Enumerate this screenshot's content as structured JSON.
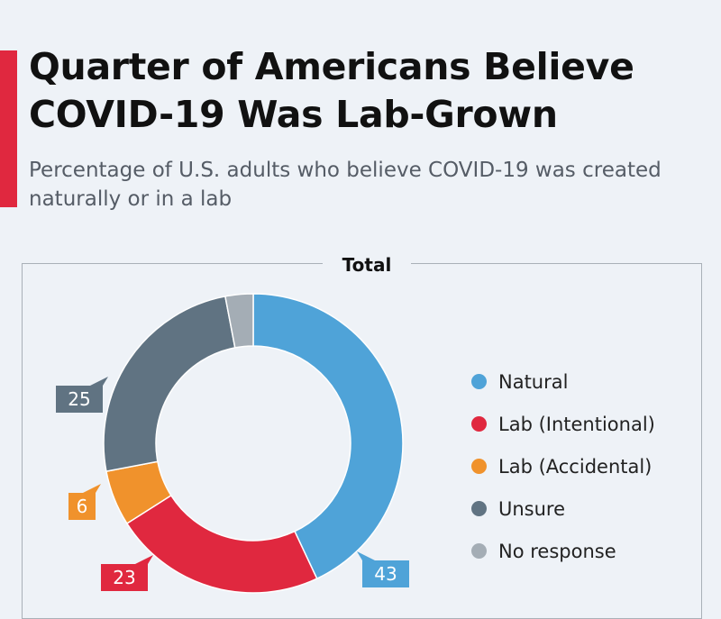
{
  "header": {
    "title": "Quarter of Americans Believe COVID-19 Was Lab-Grown",
    "subtitle": "Percentage of U.S. adults who believe COVID-19 was created naturally or in a lab"
  },
  "panel": {
    "title": "Total"
  },
  "colors": {
    "accent": "#e0283f",
    "Natural": "#4fa3d8",
    "Lab (Intentional)": "#e0283f",
    "Lab (Accidental)": "#f0922c",
    "Unsure": "#607382",
    "No response": "#a4adb5"
  },
  "chart_data": {
    "type": "pie",
    "title": "Total",
    "donut": true,
    "start_angle_deg": 0,
    "direction": "clockwise",
    "legend_position": "right",
    "slices": [
      {
        "name": "Natural",
        "value": 43,
        "label": "43",
        "color": "#4fa3d8"
      },
      {
        "name": "Lab (Intentional)",
        "value": 23,
        "label": "23",
        "color": "#e0283f"
      },
      {
        "name": "Lab (Accidental)",
        "value": 6,
        "label": "6",
        "color": "#f0922c"
      },
      {
        "name": "Unsure",
        "value": 25,
        "label": "25",
        "color": "#607382"
      },
      {
        "name": "No response",
        "value": 3,
        "label": "",
        "color": "#a4adb5"
      }
    ]
  }
}
